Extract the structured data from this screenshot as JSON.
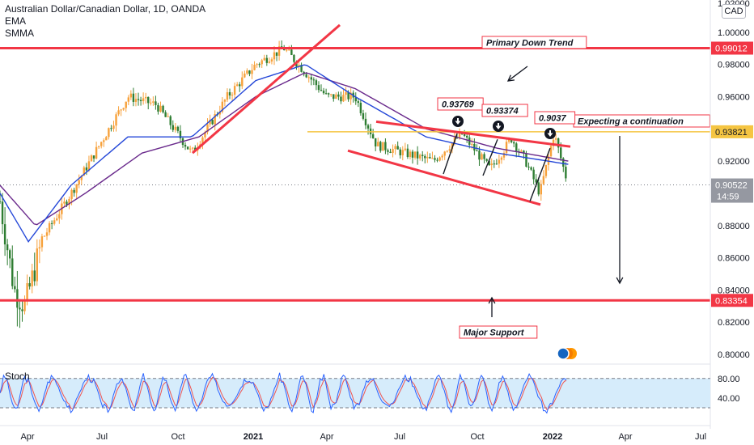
{
  "legend": {
    "symbol": "Australian Dollar/Canadian Dollar, 1D, OANDA",
    "ind1": "EMA",
    "ind2": "SMMA"
  },
  "currency": "CAD",
  "price_axis_top": "1.02000",
  "colors": {
    "up": "#f7a13b",
    "down": "#2e7d32",
    "ema": "#2447d8",
    "smma": "#6a2a8c",
    "level": "#f23645",
    "resistance": "#f5c542",
    "arrow": "#131722",
    "stoch_k": "#2962ff",
    "stoch_d": "#ef5350",
    "stoch_band": "#d6ecfb",
    "last_price": "#787b86"
  },
  "chart_data": {
    "type": "candlestick",
    "x_ticks": [
      "Apr",
      "Jul",
      "Oct",
      "2021",
      "Apr",
      "Jul",
      "Oct",
      "2022",
      "Apr",
      "Jul"
    ],
    "y_ticks": [
      "1.00000",
      "0.98000",
      "0.96000",
      "0.92000",
      "0.88000",
      "0.86000",
      "0.84000",
      "0.82000",
      "0.80000"
    ],
    "ylim": [
      0.795,
      1.02
    ],
    "price_series": [
      {
        "t": 0.0,
        "p": 0.895
      },
      {
        "t": 0.02,
        "p": 0.84
      },
      {
        "t": 0.035,
        "p": 0.83
      },
      {
        "t": 0.06,
        "p": 0.872
      },
      {
        "t": 0.1,
        "p": 0.9
      },
      {
        "t": 0.14,
        "p": 0.93
      },
      {
        "t": 0.18,
        "p": 0.96
      },
      {
        "t": 0.22,
        "p": 0.955
      },
      {
        "t": 0.27,
        "p": 0.925
      },
      {
        "t": 0.32,
        "p": 0.96
      },
      {
        "t": 0.36,
        "p": 0.98
      },
      {
        "t": 0.4,
        "p": 0.99
      },
      {
        "t": 0.43,
        "p": 0.975
      },
      {
        "t": 0.46,
        "p": 0.96
      },
      {
        "t": 0.5,
        "p": 0.96
      },
      {
        "t": 0.53,
        "p": 0.93
      },
      {
        "t": 0.57,
        "p": 0.925
      },
      {
        "t": 0.61,
        "p": 0.92
      },
      {
        "t": 0.65,
        "p": 0.937
      },
      {
        "t": 0.69,
        "p": 0.915
      },
      {
        "t": 0.72,
        "p": 0.934
      },
      {
        "t": 0.74,
        "p": 0.92
      },
      {
        "t": 0.76,
        "p": 0.9
      },
      {
        "t": 0.78,
        "p": 0.937
      },
      {
        "t": 0.8,
        "p": 0.905
      }
    ],
    "ema_series": [
      {
        "t": 0.0,
        "p": 0.9
      },
      {
        "t": 0.04,
        "p": 0.87
      },
      {
        "t": 0.1,
        "p": 0.905
      },
      {
        "t": 0.18,
        "p": 0.935
      },
      {
        "t": 0.27,
        "p": 0.935
      },
      {
        "t": 0.36,
        "p": 0.97
      },
      {
        "t": 0.43,
        "p": 0.98
      },
      {
        "t": 0.5,
        "p": 0.96
      },
      {
        "t": 0.6,
        "p": 0.935
      },
      {
        "t": 0.7,
        "p": 0.925
      },
      {
        "t": 0.8,
        "p": 0.918
      }
    ],
    "smma_series": [
      {
        "t": 0.0,
        "p": 0.905
      },
      {
        "t": 0.05,
        "p": 0.88
      },
      {
        "t": 0.12,
        "p": 0.9
      },
      {
        "t": 0.2,
        "p": 0.925
      },
      {
        "t": 0.28,
        "p": 0.935
      },
      {
        "t": 0.36,
        "p": 0.96
      },
      {
        "t": 0.43,
        "p": 0.975
      },
      {
        "t": 0.5,
        "p": 0.965
      },
      {
        "t": 0.6,
        "p": 0.94
      },
      {
        "t": 0.7,
        "p": 0.928
      },
      {
        "t": 0.8,
        "p": 0.92
      }
    ],
    "levels": [
      {
        "value": 0.99012,
        "label": "0.99012",
        "color": "level"
      },
      {
        "value": 0.93821,
        "label": "0.93821",
        "color": "resistance"
      },
      {
        "value": 0.83354,
        "label": "0.83354",
        "color": "level"
      }
    ],
    "last_price": {
      "value": 0.90522,
      "label": "0.90522",
      "countdown": "14:59"
    },
    "annotations": {
      "primary": "Primary Down Trend",
      "continuation": "Expecting a continuation",
      "support": "Major Support",
      "peaks": [
        "0.93769",
        "0.93374",
        "0.9037"
      ]
    },
    "stoch": {
      "label": "Stoch",
      "upper": 80,
      "lower": 20,
      "ticks": [
        "80.00",
        "40.00"
      ]
    }
  }
}
